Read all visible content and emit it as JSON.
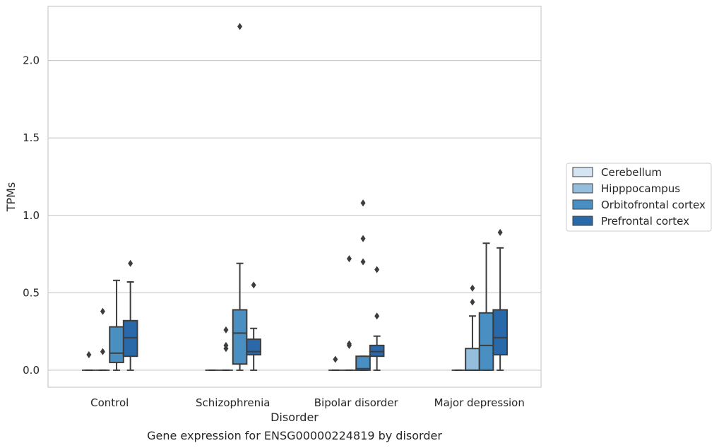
{
  "chart_data": {
    "type": "box",
    "title": "",
    "caption": "Gene expression for ENSG00000224819 by disorder",
    "xlabel": "Disorder",
    "ylabel": "TPMs",
    "ylim": [
      -0.11,
      2.35
    ],
    "yticks": [
      "0.0",
      "0.5",
      "1.0",
      "1.5",
      "2.0"
    ],
    "grid": "horizontal",
    "legend_position": "right",
    "categories": [
      "Control",
      "Schizophrenia",
      "Bipolar disorder",
      "Major depression"
    ],
    "series": [
      {
        "name": "Cerebellum",
        "color": "#d4e4f2",
        "boxes": [
          {
            "q1": 0,
            "median": 0,
            "q3": 0,
            "whisker_low": 0,
            "whisker_high": 0,
            "outliers": [
              0.1
            ]
          },
          {
            "q1": 0,
            "median": 0,
            "q3": 0,
            "whisker_low": 0,
            "whisker_high": 0,
            "outliers": []
          },
          {
            "q1": 0,
            "median": 0,
            "q3": 0,
            "whisker_low": 0,
            "whisker_high": 0,
            "outliers": [
              0.07
            ]
          },
          {
            "q1": 0,
            "median": 0,
            "q3": 0,
            "whisker_low": 0,
            "whisker_high": 0,
            "outliers": []
          }
        ]
      },
      {
        "name": "Hipppocampus",
        "color": "#94bedc",
        "boxes": [
          {
            "q1": 0,
            "median": 0,
            "q3": 0,
            "whisker_low": 0,
            "whisker_high": 0,
            "outliers": [
              0.12,
              0.38
            ]
          },
          {
            "q1": 0,
            "median": 0,
            "q3": 0,
            "whisker_low": 0,
            "whisker_high": 0,
            "outliers": [
              0.14,
              0.16,
              0.26
            ]
          },
          {
            "q1": 0,
            "median": 0,
            "q3": 0,
            "whisker_low": 0,
            "whisker_high": 0,
            "outliers": [
              0.16,
              0.17,
              0.72
            ]
          },
          {
            "q1": 0,
            "median": 0,
            "q3": 0.14,
            "whisker_low": 0,
            "whisker_high": 0.35,
            "outliers": [
              0.44,
              0.53
            ]
          }
        ]
      },
      {
        "name": "Orbitofrontal cortex",
        "color": "#4a8fc2",
        "boxes": [
          {
            "q1": 0.05,
            "median": 0.11,
            "q3": 0.28,
            "whisker_low": 0,
            "whisker_high": 0.58,
            "outliers": []
          },
          {
            "q1": 0.04,
            "median": 0.24,
            "q3": 0.39,
            "whisker_low": 0,
            "whisker_high": 0.69,
            "outliers": [
              2.22
            ]
          },
          {
            "q1": 0,
            "median": 0.01,
            "q3": 0.09,
            "whisker_low": 0,
            "whisker_high": 0.09,
            "outliers": [
              0.7,
              0.85,
              1.08
            ]
          },
          {
            "q1": 0,
            "median": 0.16,
            "q3": 0.37,
            "whisker_low": 0,
            "whisker_high": 0.82,
            "outliers": []
          }
        ]
      },
      {
        "name": "Prefrontal cortex",
        "color": "#2a69a9",
        "boxes": [
          {
            "q1": 0.09,
            "median": 0.21,
            "q3": 0.32,
            "whisker_low": 0,
            "whisker_high": 0.57,
            "outliers": [
              0.69
            ]
          },
          {
            "q1": 0.1,
            "median": 0.12,
            "q3": 0.2,
            "whisker_low": 0,
            "whisker_high": 0.27,
            "outliers": [
              0.55
            ]
          },
          {
            "q1": 0.09,
            "median": 0.12,
            "q3": 0.16,
            "whisker_low": 0,
            "whisker_high": 0.22,
            "outliers": [
              0.35,
              0.65
            ]
          },
          {
            "q1": 0.1,
            "median": 0.21,
            "q3": 0.39,
            "whisker_low": 0,
            "whisker_high": 0.79,
            "outliers": [
              0.89
            ]
          }
        ]
      }
    ]
  }
}
